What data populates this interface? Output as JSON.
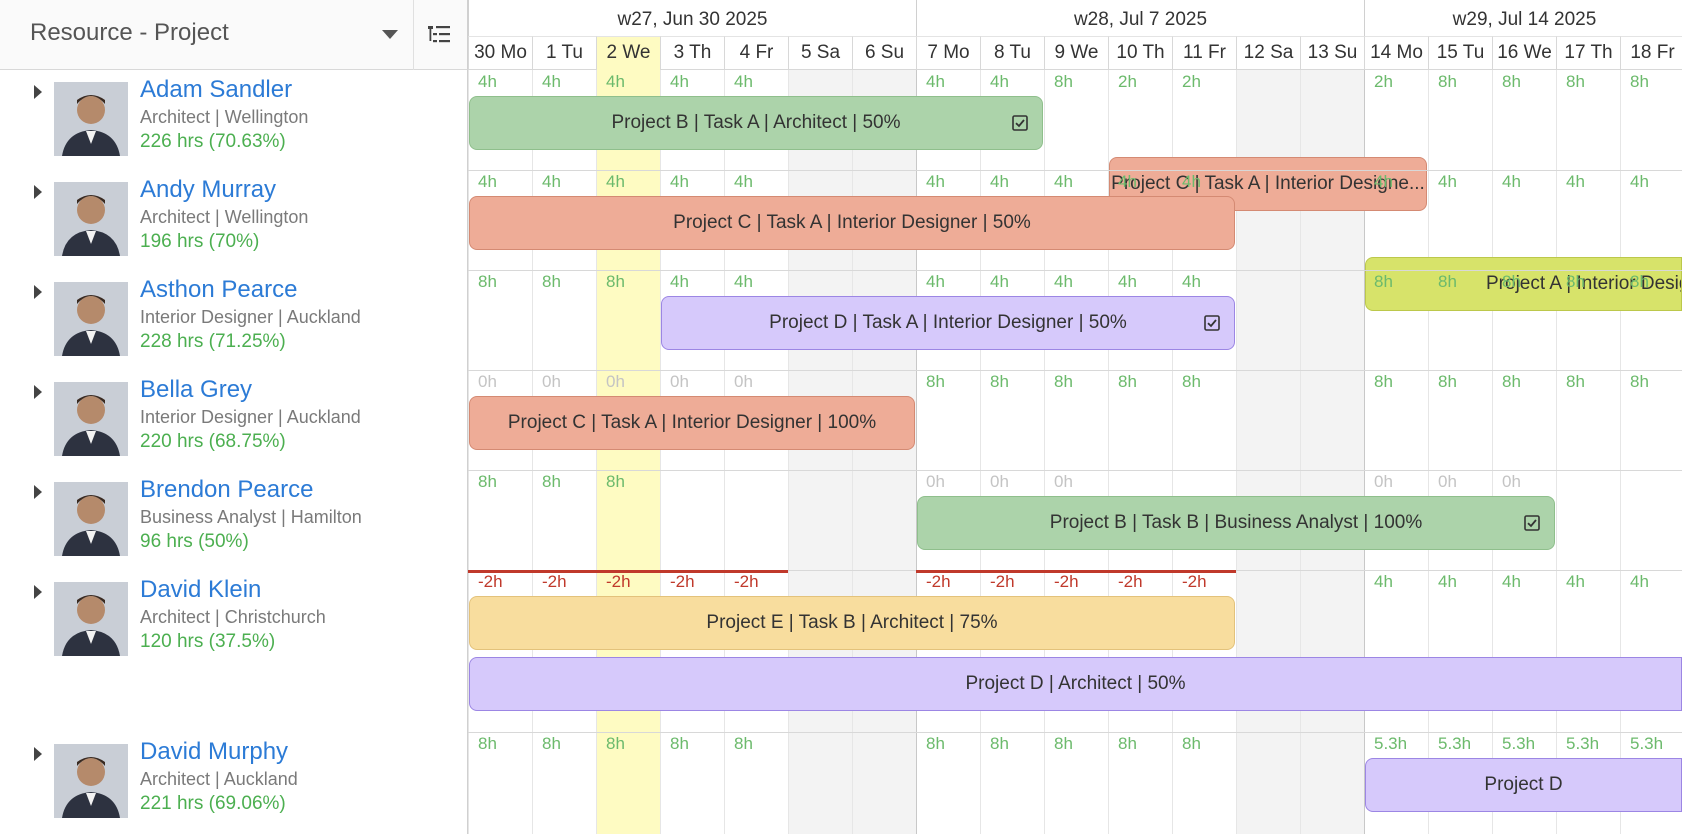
{
  "header": {
    "selector_label": "Resource - Project",
    "tree_icon": "list-tree-icon"
  },
  "weeks": [
    {
      "label": "w27, Jun 30 2025"
    },
    {
      "label": "w28, Jul 7 2025"
    },
    {
      "label": "w29, Jul 14 2025"
    }
  ],
  "days": [
    "30 Mo",
    "1 Tu",
    "2 We",
    "3 Th",
    "4 Fr",
    "5 Sa",
    "6 Su",
    "7 Mo",
    "8 Tu",
    "9 We",
    "10 Th",
    "11 Fr",
    "12 Sa",
    "13 Su",
    "14 Mo",
    "15 Tu",
    "16 We",
    "17 Th",
    "18 Fr"
  ],
  "today": "2 We",
  "colors": {
    "green": "#acd3aa",
    "orange": "#eeac97",
    "lime": "#d7e36a",
    "purple": "#d6c9fb",
    "yellow": "#f8dd9e",
    "name_blue": "#2c7bd6",
    "hours_green": "#4caf50",
    "overbooked_red": "#c0392b",
    "today": "#fefbc2"
  },
  "resources": [
    {
      "name": "Adam Sandler",
      "role": "Architect | Wellington",
      "hours": "226 hrs (70.63%)",
      "avatar_icon": "person-avatar-icon",
      "daily": [
        "4h",
        "4h",
        "4h",
        "4h",
        "4h",
        "",
        "",
        "4h",
        "4h",
        "8h",
        "2h",
        "2h",
        "",
        "",
        "2h",
        "8h",
        "8h",
        "8h",
        "8h"
      ],
      "bars": [
        {
          "label": "Project B | Task A | Architect | 50%",
          "color": "green",
          "start": 0,
          "end": 9,
          "check": true
        },
        {
          "label": "Project C | Task A | Interior Designe...",
          "color": "orange",
          "start": 10,
          "end": 15,
          "check": false
        }
      ]
    },
    {
      "name": "Andy Murray",
      "role": "Architect | Wellington",
      "hours": "196 hrs (70%)",
      "avatar_icon": "person-avatar-icon",
      "daily": [
        "4h",
        "4h",
        "4h",
        "4h",
        "4h",
        "",
        "",
        "4h",
        "4h",
        "4h",
        "4h",
        "4h",
        "",
        "",
        "4h",
        "4h",
        "4h",
        "4h",
        "4h"
      ],
      "bars": [
        {
          "label": "Project C | Task A | Interior Designer | 50%",
          "color": "orange",
          "start": 0,
          "end": 12,
          "check": false
        },
        {
          "label": "Project A | Interior Desig",
          "color": "lime",
          "start": 14,
          "end": 19,
          "check": false
        }
      ]
    },
    {
      "name": "Asthon Pearce",
      "role": "Interior Designer | Auckland",
      "hours": "228 hrs (71.25%)",
      "avatar_icon": "person-avatar-icon",
      "daily": [
        "8h",
        "8h",
        "8h",
        "4h",
        "4h",
        "",
        "",
        "4h",
        "4h",
        "4h",
        "4h",
        "4h",
        "",
        "",
        "8h",
        "8h",
        "8h",
        "8h",
        "8h"
      ],
      "bars": [
        {
          "label": "Project D | Task A | Interior Designer | 50%",
          "color": "purple",
          "start": 3,
          "end": 12,
          "check": true
        }
      ]
    },
    {
      "name": "Bella Grey",
      "role": "Interior Designer | Auckland",
      "hours": "220 hrs (68.75%)",
      "avatar_icon": "person-avatar-icon",
      "daily": [
        "0h",
        "0h",
        "0h",
        "0h",
        "0h",
        "",
        "",
        "8h",
        "8h",
        "8h",
        "8h",
        "8h",
        "",
        "",
        "8h",
        "8h",
        "8h",
        "8h",
        "8h"
      ],
      "bars": [
        {
          "label": "Project C | Task A | Interior Designer | 100%",
          "color": "orange",
          "start": 0,
          "end": 7,
          "check": false
        }
      ]
    },
    {
      "name": "Brendon Pearce",
      "role": "Business Analyst | Hamilton",
      "hours": "96 hrs (50%)",
      "avatar_icon": "person-avatar-icon",
      "daily": [
        "8h",
        "8h",
        "8h",
        "",
        "",
        "",
        "",
        "0h",
        "0h",
        "0h",
        "",
        "",
        "",
        "",
        "0h",
        "0h",
        "0h",
        "",
        ""
      ],
      "bars": [
        {
          "label": "Project B | Task B | Business Analyst | 100%",
          "color": "green",
          "start": 7,
          "end": 17,
          "check": true
        }
      ]
    },
    {
      "name": "David Klein",
      "role": "Architect | Christchurch",
      "hours": "120 hrs (37.5%)",
      "avatar_icon": "person-avatar-icon",
      "daily": [
        "-2h",
        "-2h",
        "-2h",
        "-2h",
        "-2h",
        "",
        "",
        "-2h",
        "-2h",
        "-2h",
        "-2h",
        "-2h",
        "",
        "",
        "4h",
        "4h",
        "4h",
        "4h",
        "4h"
      ],
      "bars": [
        {
          "label": "Project E | Task B | Architect | 75%",
          "color": "yellow",
          "start": 0,
          "end": 12,
          "check": false
        },
        {
          "label": "Project D | Architect | 50%",
          "color": "purple",
          "start": 0,
          "end": 19,
          "check": false
        }
      ]
    },
    {
      "name": "David Murphy",
      "role": "Architect | Auckland",
      "hours": "221 hrs (69.06%)",
      "avatar_icon": "person-avatar-icon",
      "daily": [
        "8h",
        "8h",
        "8h",
        "8h",
        "8h",
        "",
        "",
        "8h",
        "8h",
        "8h",
        "8h",
        "8h",
        "",
        "",
        "5.3h",
        "5.3h",
        "5.3h",
        "5.3h",
        "5.3h"
      ],
      "bars": [
        {
          "label": "Project D",
          "color": "purple",
          "start": 14,
          "end": 19,
          "check": false
        }
      ]
    }
  ]
}
